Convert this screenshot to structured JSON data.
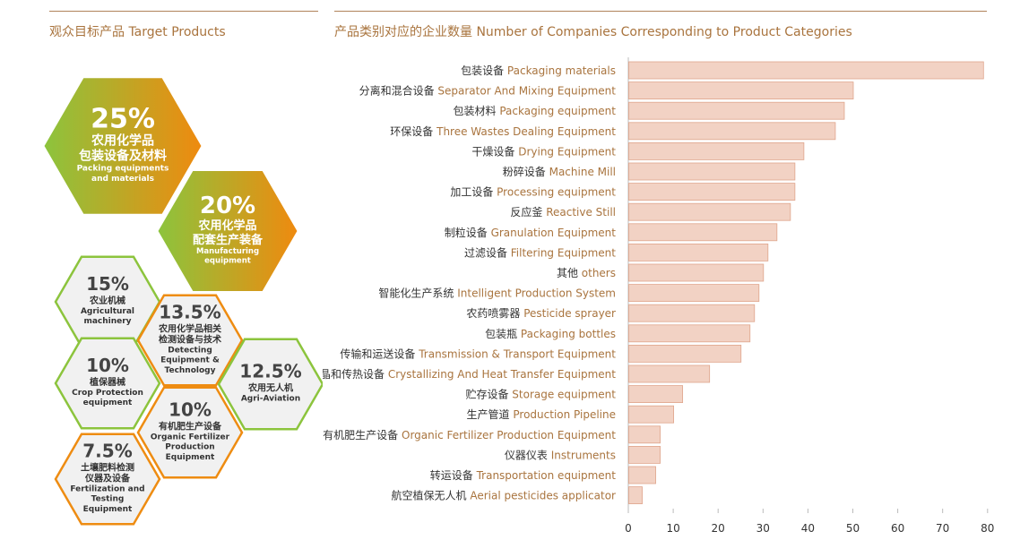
{
  "left_panel": {
    "title": "观众目标产品 Target Products",
    "hexagons": [
      {
        "pct": "25%",
        "zh": [
          "农用化学品",
          "包装设备及材料"
        ],
        "en": [
          "Packing equipments",
          "and materials"
        ],
        "style": "filled",
        "value": 25
      },
      {
        "pct": "20%",
        "zh": [
          "农用化学品",
          "配套生产装备"
        ],
        "en": [
          "Manufacturing",
          "equipment"
        ],
        "style": "filled",
        "value": 20
      },
      {
        "pct": "15%",
        "zh": [
          "农业机械"
        ],
        "en": [
          "Agricultural",
          "machinery"
        ],
        "style": "outline-green",
        "value": 15
      },
      {
        "pct": "13.5%",
        "zh": [
          "农用化学品相关",
          "检测设备与技术"
        ],
        "en": [
          "Detecting",
          "Equipment &",
          "Technology"
        ],
        "style": "outline-orange",
        "value": 13.5
      },
      {
        "pct": "10%",
        "zh": [
          "植保器械"
        ],
        "en": [
          "Crop Protection",
          "equipment"
        ],
        "style": "outline-green",
        "value": 10
      },
      {
        "pct": "12.5%",
        "zh": [
          "农用无人机"
        ],
        "en": [
          "Agri-Aviation"
        ],
        "style": "outline-green",
        "value": 12.5
      },
      {
        "pct": "10%",
        "zh": [
          "有机肥生产设备"
        ],
        "en": [
          "Organic Fertilizer",
          "Production",
          "Equipment"
        ],
        "style": "outline-orange",
        "value": 10
      },
      {
        "pct": "7.5%",
        "zh": [
          "土壤肥料检测",
          "仪器及设备"
        ],
        "en": [
          "Fertilization and",
          "Testing",
          "Equipment"
        ],
        "style": "outline-orange",
        "value": 7.5
      }
    ]
  },
  "right_panel": {
    "title_zh": "产品类别对应的企业数量",
    "title_en": "Number of Companies Corresponding to Product Categories"
  },
  "colors": {
    "bar_fill": "#f2d2c4",
    "bar_stroke": "#dfa58c",
    "label_en": "#a9743e",
    "label_zh": "#333333",
    "title": "#a9743e",
    "rule": "#b0835a",
    "hex_green": "#8cc43d",
    "hex_orange": "#ee8c12"
  },
  "chart_data": {
    "type": "bar",
    "orientation": "horizontal",
    "title": "产品类别对应的企业数量 Number of Companies Corresponding to Product Categories",
    "xlabel": "",
    "ylabel": "",
    "xlim": [
      0,
      80
    ],
    "xticks": [
      0,
      10,
      20,
      30,
      40,
      50,
      60,
      70,
      80
    ],
    "grid": false,
    "categories": [
      {
        "zh": "包装设备",
        "en": "Packaging materials",
        "value": 79
      },
      {
        "zh": "分离和混合设备",
        "en": "Separator And Mixing Equipment",
        "value": 50
      },
      {
        "zh": "包装材料",
        "en": "Packaging equipment",
        "value": 48
      },
      {
        "zh": "环保设备",
        "en": "Three Wastes Dealing Equipment",
        "value": 46
      },
      {
        "zh": "干燥设备",
        "en": "Drying Equipment",
        "value": 39
      },
      {
        "zh": "粉碎设备",
        "en": "Machine Mill",
        "value": 37
      },
      {
        "zh": "加工设备",
        "en": "Processing equipment",
        "value": 37
      },
      {
        "zh": "反应釜",
        "en": "Reactive Still",
        "value": 36
      },
      {
        "zh": "制粒设备",
        "en": "Granulation Equipment",
        "value": 33
      },
      {
        "zh": "过滤设备",
        "en": "Filtering Equipment",
        "value": 31
      },
      {
        "zh": "其他",
        "en": "others",
        "value": 30
      },
      {
        "zh": "智能化生产系统",
        "en": "Intelligent Production System",
        "value": 29
      },
      {
        "zh": "农药喷雾器",
        "en": "Pesticide sprayer",
        "value": 28
      },
      {
        "zh": "包装瓶",
        "en": "Packaging bottles",
        "value": 27
      },
      {
        "zh": "传输和运送设备",
        "en": "Transmission & Transport Equipment",
        "value": 25
      },
      {
        "zh": "结晶和传热设备",
        "en": "Crystallizing And Heat Transfer Equipment",
        "value": 18
      },
      {
        "zh": "贮存设备",
        "en": "Storage equipment",
        "value": 12
      },
      {
        "zh": "生产管道",
        "en": "Production Pipeline",
        "value": 10
      },
      {
        "zh": "有机肥生产设备",
        "en": "Organic Fertilizer Production Equipment",
        "value": 7
      },
      {
        "zh": "仪器仪表",
        "en": "Instruments",
        "value": 7
      },
      {
        "zh": "转运设备",
        "en": "Transportation equipment",
        "value": 6
      },
      {
        "zh": "航空植保无人机",
        "en": "Aerial pesticides applicator",
        "value": 3
      }
    ]
  }
}
